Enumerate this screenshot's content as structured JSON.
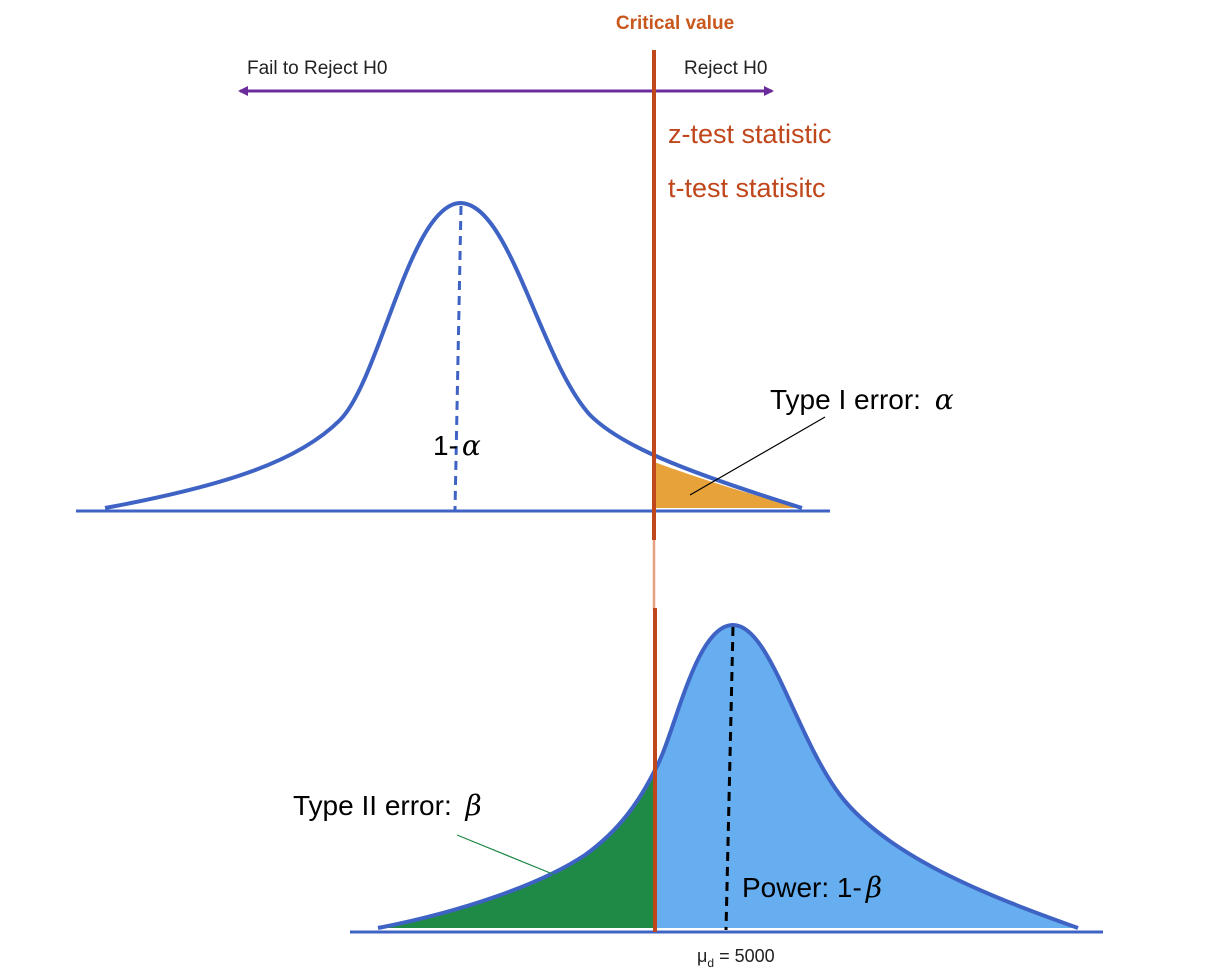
{
  "labels": {
    "critical_value": "Critical value",
    "fail_to_reject": "Fail to Reject H0",
    "reject": "Reject H0",
    "z_stat": "z-test statistic",
    "t_stat": "t-test statisitc",
    "type1_prefix": "Type I error:",
    "type1_symbol": "α",
    "one_minus_alpha_prefix": "1-",
    "one_minus_alpha_symbol": "α",
    "type2_prefix": "Type II error:",
    "type2_symbol": "β",
    "power_prefix": "Power: 1-",
    "power_symbol": "β",
    "mu_symbol": "μ",
    "mu_sub": "d",
    "mu_value": " = 5000"
  },
  "colors": {
    "curve": "#3e63c4",
    "critical_line": "#c0461b",
    "critical_text": "#c8581d",
    "arrow": "#6a2c9a",
    "type1_fill": "#e7a33a",
    "power_fill": "#66aef0",
    "type2_fill": "#1e8a45"
  }
}
